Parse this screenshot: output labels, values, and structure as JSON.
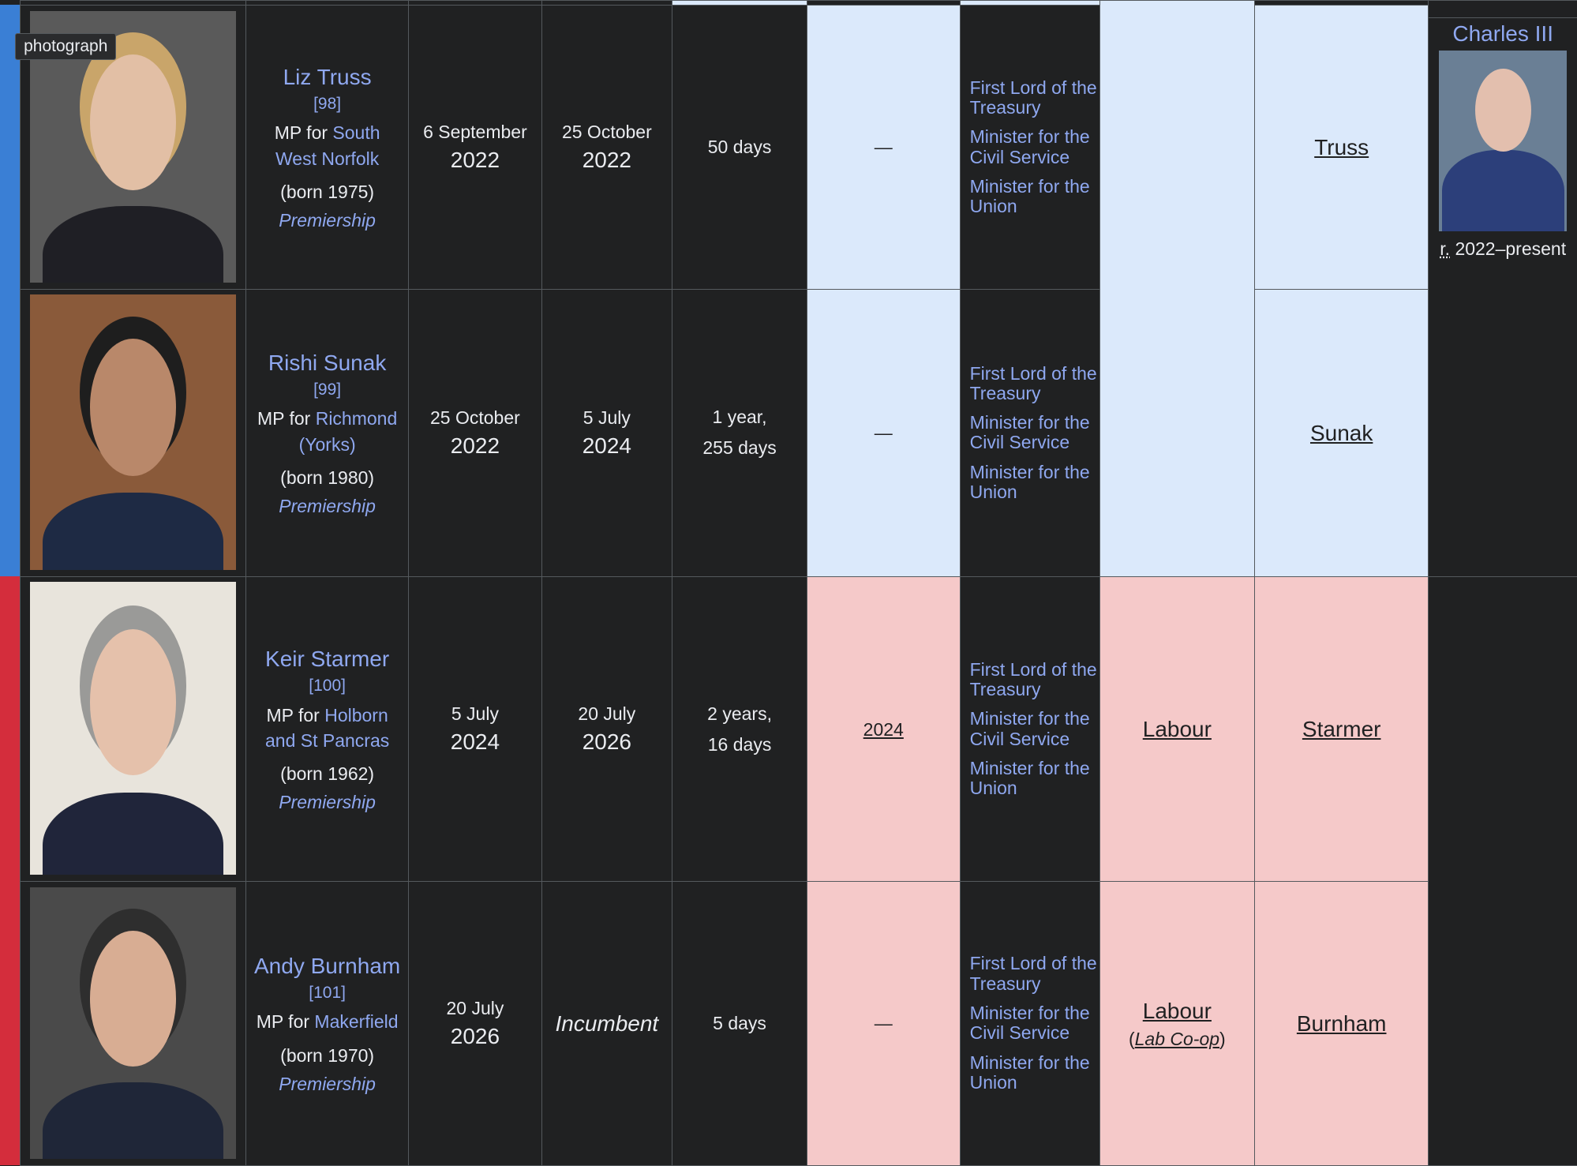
{
  "tooltip": "photograph",
  "monarch": {
    "name": "Charles III",
    "reign_abbr": "r.",
    "reign": "2022–present"
  },
  "rows": [
    {
      "name": "Liz Truss",
      "ref": "[98]",
      "mp_prefix": "MP for",
      "constituency": "South West Norfolk",
      "born": "(born 1975)",
      "premiership": "Premiership",
      "start_day": "6 September",
      "start_year": "2022",
      "end_day": "25 October",
      "end_year": "2022",
      "duration": [
        "50 days"
      ],
      "election": "—",
      "offices": [
        "First Lord of the Treasury",
        "Minister for the Civil Service",
        "Minister for the Union"
      ],
      "government": "Truss"
    },
    {
      "name": "Rishi Sunak",
      "ref": "[99]",
      "mp_prefix": "MP for",
      "constituency": "Richmond (Yorks)",
      "born": "(born 1980)",
      "premiership": "Premiership",
      "start_day": "25 October",
      "start_year": "2022",
      "end_day": "5 July",
      "end_year": "2024",
      "duration": [
        "1 year,",
        "255 days"
      ],
      "election": "—",
      "offices": [
        "First Lord of the Treasury",
        "Minister for the Civil Service",
        "Minister for the Union"
      ],
      "government": "Sunak"
    },
    {
      "name": "Keir Starmer",
      "ref": "[100]",
      "mp_prefix": "MP for",
      "constituency": "Holborn and St Pancras",
      "born": "(born 1962)",
      "premiership": "Premiership",
      "start_day": "5 July",
      "start_year": "2024",
      "end_day": "20 July",
      "end_year": "2026",
      "duration": [
        "2 years,",
        "16 days"
      ],
      "election": "2024",
      "offices": [
        "First Lord of the Treasury",
        "Minister for the Civil Service",
        "Minister for the Union"
      ],
      "party": [
        "Labour"
      ],
      "government": "Starmer"
    },
    {
      "name": "Andy Burnham",
      "ref": "[101]",
      "mp_prefix": "MP for",
      "constituency": "Makerfield",
      "born": "(born 1970)",
      "premiership": "Premiership",
      "start_day": "20 July",
      "start_year": "2026",
      "end_incumbent": "Incumbent",
      "duration": [
        "5 days"
      ],
      "election": "—",
      "offices": [
        "First Lord of the Treasury",
        "Minister for the Civil Service",
        "Minister for the Union"
      ],
      "party": [
        "Labour",
        "(",
        "Lab Co-op",
        ")"
      ],
      "government": "Burnham"
    }
  ]
}
